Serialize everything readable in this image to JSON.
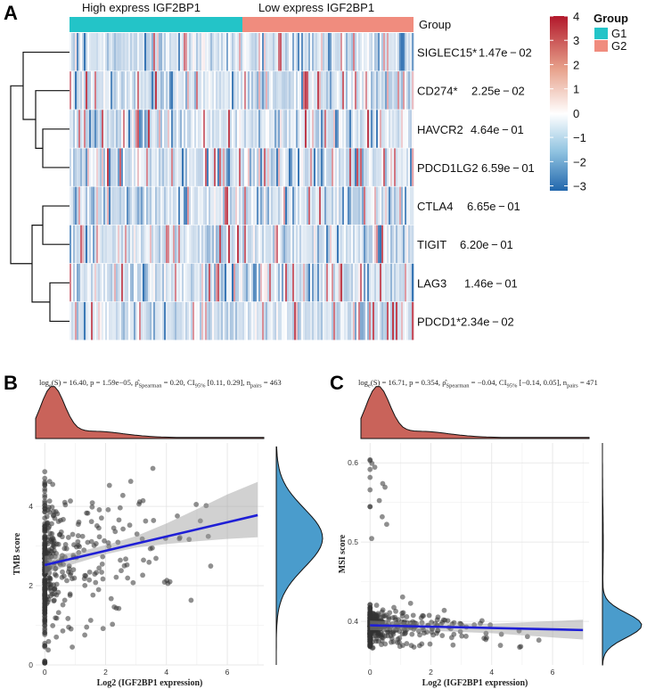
{
  "figure": {
    "panel_labels": [
      "A",
      "B",
      "C"
    ]
  },
  "chart_data": [
    {
      "id": "A",
      "type": "heatmap",
      "group_header": "Group",
      "group_bar": [
        {
          "label": "High express IGF2BP1",
          "color": "#23c4c8",
          "group": "G1"
        },
        {
          "label": "Low express IGF2BP1",
          "color": "#f08c7e",
          "group": "G2"
        }
      ],
      "rows": [
        {
          "gene": "SIGLEC15*",
          "pvalue": "1.47e − 02"
        },
        {
          "gene": "CD274*",
          "pvalue": "2.25e − 02"
        },
        {
          "gene": "HAVCR2",
          "pvalue": "4.64e − 01"
        },
        {
          "gene": "PDCD1LG2",
          "pvalue": "6.59e − 01"
        },
        {
          "gene": "CTLA4",
          "pvalue": "6.65e − 01"
        },
        {
          "gene": "TIGIT",
          "pvalue": "6.20e − 01"
        },
        {
          "gene": "LAG3",
          "pvalue": "1.46e − 01"
        },
        {
          "gene": "PDCD1*",
          "pvalue": "2.34e − 02"
        }
      ],
      "colorbar": {
        "min": -3.2,
        "max": 4,
        "ticks": [
          4,
          3,
          2,
          1,
          0,
          -1,
          -2,
          -3
        ],
        "tick_labels": [
          "4",
          "3",
          "2",
          "1",
          "0",
          "−1",
          "−2",
          "−3"
        ],
        "colors": [
          "#2166ac",
          "#ffffff",
          "#b2182b"
        ]
      },
      "legend": {
        "title": "Group",
        "entries": [
          {
            "label": "G1",
            "color": "#23c4c8"
          },
          {
            "label": "G2",
            "color": "#f08c7e"
          }
        ]
      },
      "dendrogram_clusters": [
        [
          "SIGLEC15*",
          "CD274*",
          "HAVCR2",
          "PDCD1LG2"
        ],
        [
          "CTLA4",
          "TIGIT",
          "LAG3",
          "PDCD1*"
        ]
      ]
    },
    {
      "id": "B",
      "type": "scatter",
      "stats_text": {
        "prefix": "log",
        "sub_e": "e",
        "s_part": "(S) = 16.40, ",
        "p_part": "p = 1.59e−05, ",
        "rho_part": "ρ̂",
        "rho_sub": "Spearman",
        "rho_val": " = 0.20, CI",
        "ci_sub": "95%",
        "ci_val": " [0.11, 0.29], ",
        "n_part": "n",
        "n_sub": "pairs",
        "n_val": " = 463"
      },
      "xlabel": "Log2 (IGF2BP1 expression)",
      "ylabel": "TMB score",
      "xlim": [
        -0.3,
        7.2
      ],
      "ylim": [
        0,
        5.6
      ],
      "xticks": [
        0,
        2,
        4,
        6
      ],
      "yticks": [
        0,
        2,
        4
      ],
      "regression": {
        "x0": 0,
        "y0": 2.52,
        "x1": 7.0,
        "y1": 3.78
      },
      "ci_band": [
        [
          0,
          2.3,
          2.75
        ],
        [
          1,
          2.56,
          2.84
        ],
        [
          2,
          2.79,
          3.02
        ],
        [
          3,
          2.96,
          3.25
        ],
        [
          4,
          3.05,
          3.57
        ],
        [
          5,
          3.12,
          3.93
        ],
        [
          6,
          3.18,
          4.3
        ],
        [
          7,
          3.22,
          4.62
        ]
      ],
      "point_count": 463,
      "point_color": "#333333"
    },
    {
      "id": "C",
      "type": "scatter",
      "stats_text": {
        "prefix": "log",
        "sub_e": "e",
        "s_part": "(S) = 16.71, ",
        "p_part": "p = 0.354, ",
        "rho_part": "ρ̂",
        "rho_sub": "Spearman",
        "rho_val": " = −0.04, CI",
        "ci_sub": "95%",
        "ci_val": " [−0.14, 0.05], ",
        "n_part": "n",
        "n_sub": "pairs",
        "n_val": " = 471"
      },
      "xlabel": "Log2 (IGF2BP1 expression)",
      "ylabel": "MSI score",
      "xlim": [
        -0.3,
        7.2
      ],
      "ylim": [
        0.345,
        0.625
      ],
      "xticks": [
        0,
        2,
        4,
        6
      ],
      "yticks": [
        0.4,
        0.5,
        0.6
      ],
      "regression": {
        "x0": 0,
        "y0": 0.395,
        "x1": 7.0,
        "y1": 0.389
      },
      "ci_band": [
        [
          0,
          0.389,
          0.401
        ],
        [
          2,
          0.388,
          0.398
        ],
        [
          4,
          0.385,
          0.397
        ],
        [
          7,
          0.377,
          0.402
        ]
      ],
      "point_count": 471,
      "point_color": "#333333"
    }
  ]
}
